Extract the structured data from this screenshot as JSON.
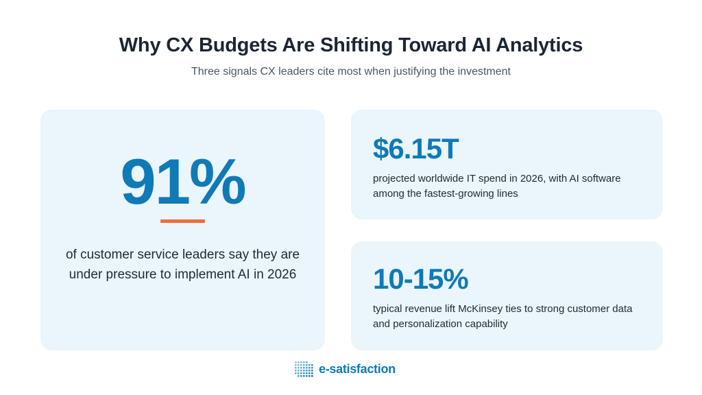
{
  "header": {
    "title": "Why CX Budgets Are Shifting Toward AI Analytics",
    "subtitle": "Three signals CX leaders cite most when justifying the investment"
  },
  "cards": [
    {
      "stat": "91%",
      "description": "of customer service leaders say they are under pressure to implement AI in 2026"
    },
    {
      "stat": "$6.15T",
      "description": "projected worldwide IT spend in 2026, with AI software among the fastest-growing lines"
    },
    {
      "stat": "10-15%",
      "description": "typical revenue lift McKinsey ties to strong customer data and personalization capability"
    }
  ],
  "footer": {
    "logo_text": "e-satisfaction"
  },
  "colors": {
    "accent_blue": "#0f7ab6",
    "accent_orange": "#f26b3a",
    "card_bg": "#eaf5fc",
    "title": "#1b2633"
  },
  "icons": {
    "logo_mark": "dot-grid-logo-icon"
  }
}
